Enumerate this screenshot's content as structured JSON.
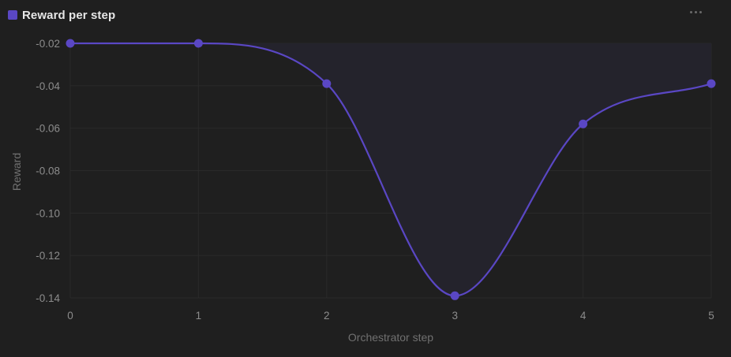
{
  "header": {
    "title": "Reward per step",
    "more_icon": "more-horizontal-icon"
  },
  "colors": {
    "background": "#1f1f1f",
    "series": "#5a47c4",
    "fill": "#24232c",
    "grid": "#2a2a2a",
    "tick_text": "#8c8c8c",
    "axis_title": "#707070"
  },
  "chart_data": {
    "type": "line",
    "title": "Reward per step",
    "xlabel": "Orchestrator step",
    "ylabel": "Reward",
    "x": [
      0,
      1,
      2,
      3,
      4,
      5
    ],
    "xticks": [
      "0",
      "1",
      "2",
      "3",
      "4",
      "5"
    ],
    "yticks": [
      "-0.02",
      "-0.04",
      "-0.06",
      "-0.08",
      "-0.10",
      "-0.12",
      "-0.14"
    ],
    "ytick_values": [
      -0.02,
      -0.04,
      -0.06,
      -0.08,
      -0.1,
      -0.12,
      -0.14
    ],
    "xlim": [
      0,
      5
    ],
    "ylim": [
      -0.14,
      -0.02
    ],
    "grid": true,
    "smooth": true,
    "area_fill": true,
    "series": [
      {
        "name": "Reward per step",
        "values": [
          -0.02,
          -0.02,
          -0.039,
          -0.139,
          -0.058,
          -0.039
        ]
      }
    ]
  }
}
